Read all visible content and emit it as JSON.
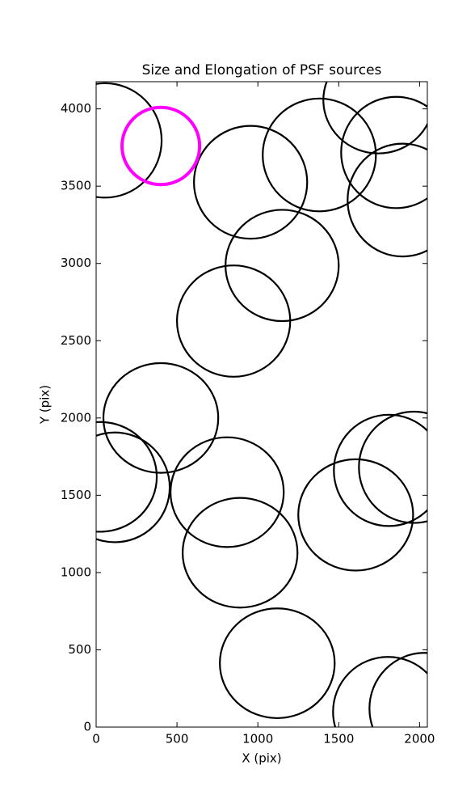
{
  "chart_data": {
    "type": "ellipse",
    "title": "Size and Elongation of PSF sources",
    "x_label": "X (pix)",
    "y_label": "Y (pix)",
    "xlim": [
      0,
      2048
    ],
    "ylim": [
      0,
      4176
    ],
    "xticks": [
      0,
      500,
      1000,
      1500,
      2000
    ],
    "yticks": [
      0,
      500,
      1000,
      1500,
      2000,
      2500,
      3000,
      3500,
      4000
    ],
    "series": [
      {
        "color": "#000000",
        "x": [
          55,
          955,
          1380,
          1745,
          1855,
          1895,
          1150,
          850,
          400,
          25,
          115,
          810,
          890,
          1605,
          1810,
          1965,
          1120,
          1805,
          2030
        ],
        "y": [
          3796,
          3525,
          3702,
          4057,
          3718,
          3410,
          2987,
          2627,
          2000,
          1619,
          1551,
          1520,
          1128,
          1373,
          1661,
          1681,
          413,
          99,
          120
        ],
        "width": [
          700,
          700,
          700,
          680,
          680,
          680,
          700,
          700,
          710,
          700,
          680,
          700,
          710,
          710,
          680,
          680,
          710,
          680,
          680
        ],
        "height": [
          740,
          730,
          730,
          690,
          720,
          730,
          720,
          720,
          710,
          710,
          710,
          710,
          710,
          720,
          720,
          720,
          710,
          710,
          720
        ]
      },
      {
        "color": "#ff00ff",
        "x": [
          400
        ],
        "y": [
          3760
        ],
        "width": [
          480
        ],
        "height": [
          500
        ]
      }
    ]
  }
}
